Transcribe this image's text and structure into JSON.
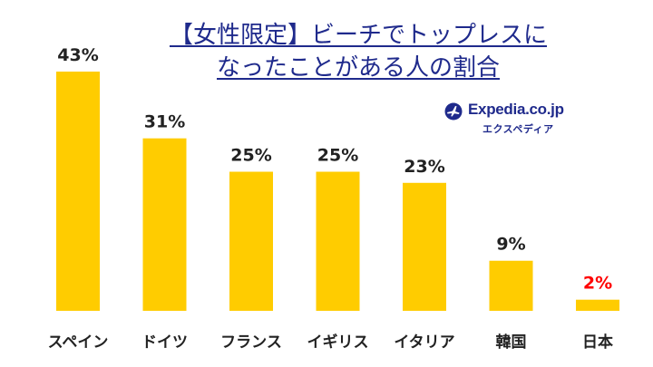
{
  "title": {
    "line1": "【女性限定】ビーチでトップレスに",
    "line2": "なったことがある人の割合"
  },
  "logo": {
    "brand": "Expedia.co.jp",
    "sub": "エクスペディア",
    "icon": "airplane-globe-icon"
  },
  "colors": {
    "bar": "#FFCC00",
    "label": "#222222",
    "highlight_label": "#ff0000",
    "title": "#1f2a8c"
  },
  "chart_data": {
    "type": "bar",
    "title": "【女性限定】ビーチでトップレスになったことがある人の割合",
    "categories": [
      "スペイン",
      "ドイツ",
      "フランス",
      "イギリス",
      "イタリア",
      "韓国",
      "日本"
    ],
    "values": [
      43,
      31,
      25,
      25,
      23,
      9,
      2
    ],
    "value_labels": [
      "43%",
      "31%",
      "25%",
      "25%",
      "23%",
      "9%",
      "2%"
    ],
    "highlight_index": 6,
    "xlabel": "",
    "ylabel": "",
    "ylim": [
      0,
      43
    ],
    "grid": false,
    "legend": "none"
  }
}
